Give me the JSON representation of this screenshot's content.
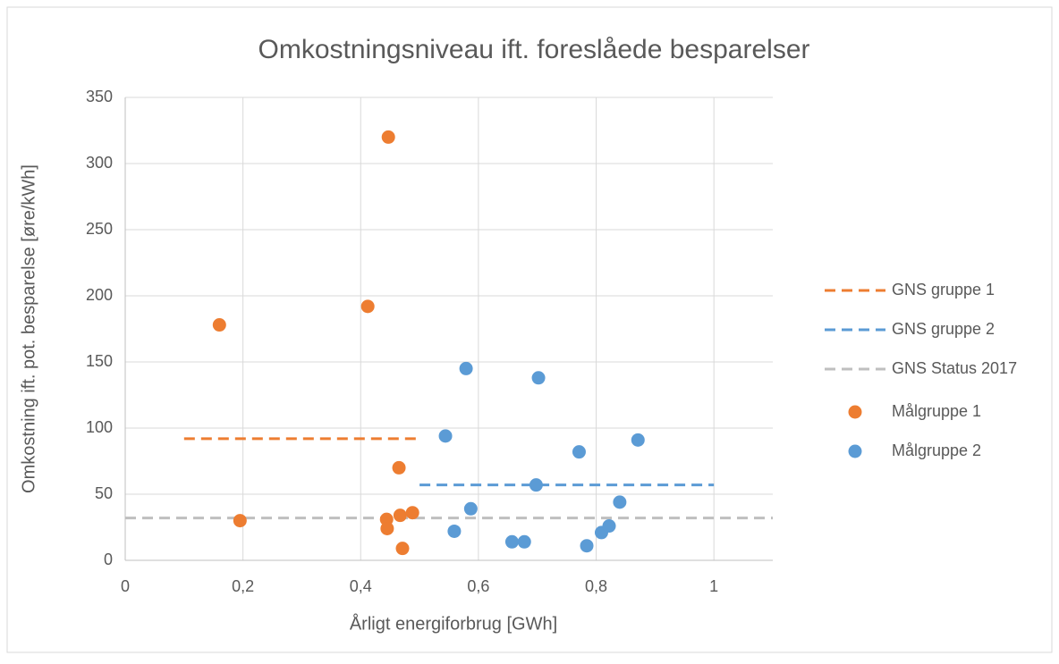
{
  "chart_data": {
    "type": "scatter",
    "title": "Omkostningsniveau ift. foreslåede besparelser",
    "x_label": "Årligt energiforbrug [GWh]",
    "y_label": "Omkostning  ift. pot. besparelse [øre/kWh]",
    "xlim": [
      0,
      1.1
    ],
    "ylim": [
      0,
      350
    ],
    "xticks": [
      0,
      {
        "value": 0.2,
        "label": "0,2"
      },
      {
        "value": 0.4,
        "label": "0,4"
      },
      {
        "value": 0.6,
        "label": "0,6"
      },
      {
        "value": 0.8,
        "label": "0,8"
      },
      1
    ],
    "yticks": [
      0,
      50,
      100,
      150,
      200,
      250,
      300,
      350
    ],
    "grid": true,
    "legend": "right",
    "series": [
      {
        "name": "GNS gruppe 1",
        "mode": "line",
        "dashed": true,
        "color": "#ed7d31",
        "x": [
          0.1,
          0.5
        ],
        "values": [
          92,
          92
        ]
      },
      {
        "name": "GNS gruppe 2",
        "mode": "line",
        "dashed": true,
        "color": "#5b9bd5",
        "x": [
          0.5,
          1.0
        ],
        "values": [
          57,
          57
        ]
      },
      {
        "name": "GNS Status 2017",
        "mode": "line",
        "dashed": true,
        "color": "#bfbfbf",
        "x": [
          0,
          1.1
        ],
        "values": [
          32,
          32
        ]
      },
      {
        "name": "Målgruppe 1",
        "mode": "marker",
        "color": "#ed7d31",
        "x": [
          0.16,
          0.195,
          0.412,
          0.447,
          0.465,
          0.444,
          0.445,
          0.467,
          0.488,
          0.471
        ],
        "values": [
          178,
          30,
          192,
          320,
          70,
          31,
          24,
          34,
          36,
          9
        ]
      },
      {
        "name": "Målgruppe 2",
        "mode": "marker",
        "color": "#5b9bd5",
        "x": [
          0.579,
          0.544,
          0.702,
          0.771,
          0.871,
          0.698,
          0.587,
          0.559,
          0.657,
          0.678,
          0.784,
          0.809,
          0.822,
          0.84
        ],
        "values": [
          145,
          94,
          138,
          82,
          91,
          57,
          39,
          22,
          14,
          14,
          11,
          21,
          26,
          44
        ]
      }
    ]
  }
}
